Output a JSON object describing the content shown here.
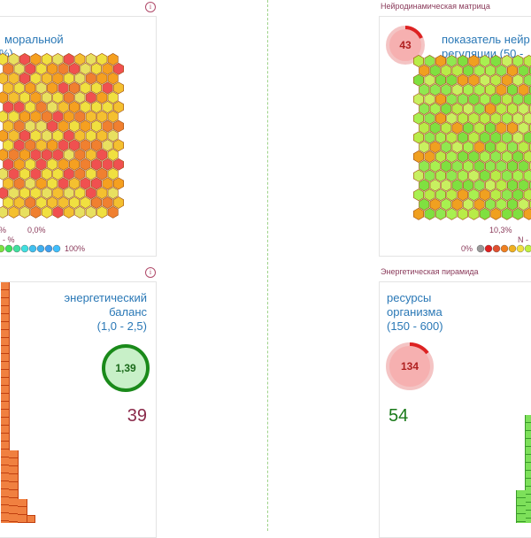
{
  "panel_left_top": {
    "title_fragment_1": "моральной",
    "title_fragment_2": "%)",
    "stats_text_1": "%",
    "stats_text_2": "0,0%",
    "stats_text_3": "- %",
    "legend_end": "100%"
  },
  "panel_right_top": {
    "section_title": "Нейродинамическая матрица",
    "gauge_value": "43",
    "title_line1": "показатель нейр",
    "title_line2": "регуляции (50 - ",
    "stats_text_1": "10,3%",
    "stats_text_2": "N -",
    "legend_start": "0%"
  },
  "panel_left_bottom": {
    "title_line1": "энергетический",
    "title_line2": "баланс",
    "title_line3": "(1,0 - 2,5)",
    "gauge_value": "1,39",
    "big_number": "39"
  },
  "panel_right_bottom": {
    "section_title": "Энергетическая пирамида",
    "title_line1": "ресурсы",
    "title_line2": "организма",
    "title_line3": "(150 - 600)",
    "gauge_value": "134",
    "big_number": "54"
  },
  "icons": {
    "info": "i"
  },
  "colors": {
    "accent_text": "#2a78b6",
    "section_text": "#8a3a5a",
    "gauge_red": "#e06060",
    "gauge_green": "#1a8a1a"
  }
}
